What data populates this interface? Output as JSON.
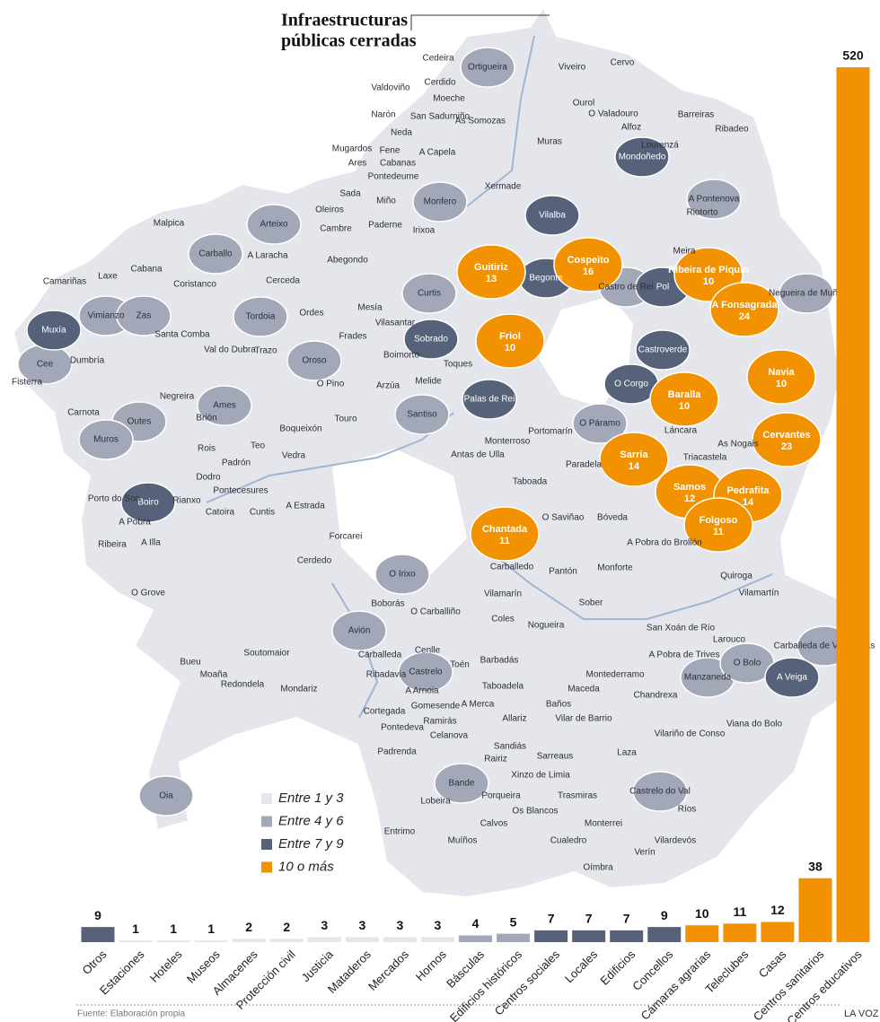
{
  "title_lines": [
    "Infraestructuras",
    "públicas cerradas"
  ],
  "legend": {
    "labels": [
      "Entre 1 y 3",
      "Entre 4 y 6",
      "Entre 7 y 9",
      "10 o más"
    ],
    "colors": [
      "#e4e6ec",
      "#a2a8b7",
      "#56627a",
      "#f39200"
    ]
  },
  "municipalities": [
    {
      "name": "Ortigueira",
      "level": 1
    },
    {
      "name": "Monfero",
      "level": 1
    },
    {
      "name": "Arteixo",
      "level": 1
    },
    {
      "name": "Carballo",
      "level": 1
    },
    {
      "name": "Vimianzo",
      "level": 1
    },
    {
      "name": "Zas",
      "level": 1
    },
    {
      "name": "Tordoia",
      "level": 1
    },
    {
      "name": "Curtis",
      "level": 1
    },
    {
      "name": "Oroso",
      "level": 1
    },
    {
      "name": "Ames",
      "level": 1
    },
    {
      "name": "Outes",
      "level": 1
    },
    {
      "name": "Muros",
      "level": 1
    },
    {
      "name": "Santiso",
      "level": 1
    },
    {
      "name": "Cee",
      "level": 1
    },
    {
      "name": "A Pontenova",
      "level": 1
    },
    {
      "name": "Castro de Rei",
      "level": 1
    },
    {
      "name": "Negueira de Muñiz",
      "level": 1
    },
    {
      "name": "O Páramo",
      "level": 1
    },
    {
      "name": "O Irixo",
      "level": 1
    },
    {
      "name": "Avión",
      "level": 1
    },
    {
      "name": "Castrelo",
      "level": 1
    },
    {
      "name": "Bande",
      "level": 1
    },
    {
      "name": "Castrelo do Val",
      "level": 1
    },
    {
      "name": "Manzaneda",
      "level": 1
    },
    {
      "name": "O Bolo",
      "level": 1
    },
    {
      "name": "Carballeda de Valdeorras",
      "level": 1
    },
    {
      "name": "Oia",
      "level": 1
    },
    {
      "name": "Mondoñedo",
      "level": 2
    },
    {
      "name": "Vilalba",
      "level": 2
    },
    {
      "name": "Begonte",
      "level": 2
    },
    {
      "name": "Pol",
      "level": 2
    },
    {
      "name": "Castroverde",
      "level": 2
    },
    {
      "name": "O Corgo",
      "level": 2
    },
    {
      "name": "Sobrado",
      "level": 2
    },
    {
      "name": "Palas de Rei",
      "level": 2
    },
    {
      "name": "Muxía",
      "level": 2
    },
    {
      "name": "Boiro",
      "level": 2
    },
    {
      "name": "A Veiga",
      "level": 2
    },
    {
      "name": "Cedeira",
      "level": 0
    },
    {
      "name": "Cerdido",
      "level": 0
    },
    {
      "name": "Valdoviño",
      "level": 0
    },
    {
      "name": "Moeche",
      "level": 0
    },
    {
      "name": "San Sadurniño",
      "level": 0
    },
    {
      "name": "As Somozas",
      "level": 0
    },
    {
      "name": "Narón",
      "level": 0
    },
    {
      "name": "Neda",
      "level": 0
    },
    {
      "name": "Mugardos",
      "level": 0
    },
    {
      "name": "Fene",
      "level": 0
    },
    {
      "name": "Ares",
      "level": 0
    },
    {
      "name": "Cabanas",
      "level": 0
    },
    {
      "name": "A Capela",
      "level": 0
    },
    {
      "name": "Pontedeume",
      "level": 0
    },
    {
      "name": "Sada",
      "level": 0
    },
    {
      "name": "Miño",
      "level": 0
    },
    {
      "name": "Oleiros",
      "level": 0
    },
    {
      "name": "Cambre",
      "level": 0
    },
    {
      "name": "Paderne",
      "level": 0
    },
    {
      "name": "Irixoa",
      "level": 0
    },
    {
      "name": "Xermade",
      "level": 0
    },
    {
      "name": "Viveiro",
      "level": 0
    },
    {
      "name": "Cervo",
      "level": 0
    },
    {
      "name": "Ourol",
      "level": 0
    },
    {
      "name": "O Valadouro",
      "level": 0
    },
    {
      "name": "Barreiras",
      "level": 0
    },
    {
      "name": "Ribadeo",
      "level": 0
    },
    {
      "name": "Alfoz",
      "level": 0
    },
    {
      "name": "Muras",
      "level": 0
    },
    {
      "name": "Lourenzá",
      "level": 0
    },
    {
      "name": "Riotorto",
      "level": 0
    },
    {
      "name": "Meira",
      "level": 0
    },
    {
      "name": "Malpica",
      "level": 0
    },
    {
      "name": "A Laracha",
      "level": 0
    },
    {
      "name": "Abegondo",
      "level": 0
    },
    {
      "name": "Cabana",
      "level": 0
    },
    {
      "name": "Laxe",
      "level": 0
    },
    {
      "name": "Camariñas",
      "level": 0
    },
    {
      "name": "Coristanco",
      "level": 0
    },
    {
      "name": "Cerceda",
      "level": 0
    },
    {
      "name": "Mesía",
      "level": 0
    },
    {
      "name": "Ordes",
      "level": 0
    },
    {
      "name": "Santa Comba",
      "level": 0
    },
    {
      "name": "Val do Dubra",
      "level": 0
    },
    {
      "name": "Trazo",
      "level": 0
    },
    {
      "name": "Frades",
      "level": 0
    },
    {
      "name": "Vilasantar",
      "level": 0
    },
    {
      "name": "Boimorto",
      "level": 0
    },
    {
      "name": "Toques",
      "level": 0
    },
    {
      "name": "Dumbría",
      "level": 0
    },
    {
      "name": "Fisterra",
      "level": 0
    },
    {
      "name": "O Pino",
      "level": 0
    },
    {
      "name": "Arzúa",
      "level": 0
    },
    {
      "name": "Melide",
      "level": 0
    },
    {
      "name": "Negreira",
      "level": 0
    },
    {
      "name": "Brión",
      "level": 0
    },
    {
      "name": "Touro",
      "level": 0
    },
    {
      "name": "Carnota",
      "level": 0
    },
    {
      "name": "Boqueixón",
      "level": 0
    },
    {
      "name": "Teo",
      "level": 0
    },
    {
      "name": "Rois",
      "level": 0
    },
    {
      "name": "Vedra",
      "level": 0
    },
    {
      "name": "Padrón",
      "level": 0
    },
    {
      "name": "Dodro",
      "level": 0
    },
    {
      "name": "Pontecesures",
      "level": 0
    },
    {
      "name": "Porto do Son",
      "level": 0
    },
    {
      "name": "Rianxo",
      "level": 0
    },
    {
      "name": "A Pobra",
      "level": 0
    },
    {
      "name": "Catoira",
      "level": 0
    },
    {
      "name": "Cuntis",
      "level": 0
    },
    {
      "name": "A Estrada",
      "level": 0
    },
    {
      "name": "Ribeira",
      "level": 0
    },
    {
      "name": "A Illa",
      "level": 0
    },
    {
      "name": "Forcarei",
      "level": 0
    },
    {
      "name": "Cerdedo",
      "level": 0
    },
    {
      "name": "O Grove",
      "level": 0
    },
    {
      "name": "Monterroso",
      "level": 0
    },
    {
      "name": "Antas de Ulla",
      "level": 0
    },
    {
      "name": "Portomarín",
      "level": 0
    },
    {
      "name": "Láncara",
      "level": 0
    },
    {
      "name": "As Nogais",
      "level": 0
    },
    {
      "name": "Triacastela",
      "level": 0
    },
    {
      "name": "Paradela",
      "level": 0
    },
    {
      "name": "Taboada",
      "level": 0
    },
    {
      "name": "O Saviñao",
      "level": 0
    },
    {
      "name": "Bóveda",
      "level": 0
    },
    {
      "name": "A Pobra do Brollón",
      "level": 0
    },
    {
      "name": "Carballedo",
      "level": 0
    },
    {
      "name": "Pantón",
      "level": 0
    },
    {
      "name": "Monforte",
      "level": 0
    },
    {
      "name": "Quiroga",
      "level": 0
    },
    {
      "name": "Boborás",
      "level": 0
    },
    {
      "name": "O Carballiño",
      "level": 0
    },
    {
      "name": "Vilamarín",
      "level": 0
    },
    {
      "name": "Coles",
      "level": 0
    },
    {
      "name": "Nogueira",
      "level": 0
    },
    {
      "name": "Sober",
      "level": 0
    },
    {
      "name": "Vilamartín",
      "level": 0
    },
    {
      "name": "San Xoán de Río",
      "level": 0
    },
    {
      "name": "A Pobra de Trives",
      "level": 0
    },
    {
      "name": "Larouco",
      "level": 0
    },
    {
      "name": "Soutomaior",
      "level": 0
    },
    {
      "name": "Carballeda",
      "level": 0
    },
    {
      "name": "Cenlle",
      "level": 0
    },
    {
      "name": "Toén",
      "level": 0
    },
    {
      "name": "Barbadás",
      "level": 0
    },
    {
      "name": "Ribadavia",
      "level": 0
    },
    {
      "name": "Bueu",
      "level": 0
    },
    {
      "name": "Moaña",
      "level": 0
    },
    {
      "name": "Redondela",
      "level": 0
    },
    {
      "name": "Mondariz",
      "level": 0
    },
    {
      "name": "A Arnoia",
      "level": 0
    },
    {
      "name": "Taboadela",
      "level": 0
    },
    {
      "name": "Montederramo",
      "level": 0
    },
    {
      "name": "Maceda",
      "level": 0
    },
    {
      "name": "Chandrexa",
      "level": 0
    },
    {
      "name": "Cortegada",
      "level": 0
    },
    {
      "name": "Gomesende",
      "level": 0
    },
    {
      "name": "A Merca",
      "level": 0
    },
    {
      "name": "Baños",
      "level": 0
    },
    {
      "name": "Pontedeva",
      "level": 0
    },
    {
      "name": "Ramirás",
      "level": 0
    },
    {
      "name": "Allariz",
      "level": 0
    },
    {
      "name": "Vilar de Barrio",
      "level": 0
    },
    {
      "name": "Viana do Bolo",
      "level": 0
    },
    {
      "name": "Vilariño de Conso",
      "level": 0
    },
    {
      "name": "Padrenda",
      "level": 0
    },
    {
      "name": "Celanova",
      "level": 0
    },
    {
      "name": "Sandiás",
      "level": 0
    },
    {
      "name": "Sarreaus",
      "level": 0
    },
    {
      "name": "Laza",
      "level": 0
    },
    {
      "name": "Rairiz",
      "level": 0
    },
    {
      "name": "Xinzo de Limia",
      "level": 0
    },
    {
      "name": "Porqueira",
      "level": 0
    },
    {
      "name": "Trasmiras",
      "level": 0
    },
    {
      "name": "Lobeira",
      "level": 0
    },
    {
      "name": "Os Blancos",
      "level": 0
    },
    {
      "name": "Ríos",
      "level": 0
    },
    {
      "name": "Calvos",
      "level": 0
    },
    {
      "name": "Entrimo",
      "level": 0
    },
    {
      "name": "Monterrei",
      "level": 0
    },
    {
      "name": "Muíños",
      "level": 0
    },
    {
      "name": "Cualedro",
      "level": 0
    },
    {
      "name": "Vilardevós",
      "level": 0
    },
    {
      "name": "Verín",
      "level": 0
    },
    {
      "name": "Oímbra",
      "level": 0
    }
  ],
  "highlighted": [
    {
      "name": "Guitiriz",
      "value": 13
    },
    {
      "name": "Cospeito",
      "value": 16
    },
    {
      "name": "Friol",
      "value": 10
    },
    {
      "name": "Ribeira de Piquín",
      "value": 10
    },
    {
      "name": "A Fonsagrada",
      "value": 24
    },
    {
      "name": "Navia",
      "value": 10
    },
    {
      "name": "Baralla",
      "value": 10
    },
    {
      "name": "Cervantes",
      "value": 23
    },
    {
      "name": "Sarria",
      "value": 14
    },
    {
      "name": "Samos",
      "value": 12
    },
    {
      "name": "Pedrafita",
      "value": 14
    },
    {
      "name": "Folgoso",
      "value": 11
    },
    {
      "name": "Chantada",
      "value": 11
    }
  ],
  "chart_data": {
    "type": "bar",
    "categories": [
      "Otros",
      "Estaciones",
      "Hoteles",
      "Museos",
      "Almacenes",
      "Protección civil",
      "Justicia",
      "Mataderos",
      "Mercados",
      "Hornos",
      "Básculas",
      "Edificios históricos",
      "Centros sociales",
      "Locales",
      "Edificios",
      "Concellos",
      "Cámaras agrarias",
      "Teleclubes",
      "Casas",
      "Centros sanitarios",
      "Centros educativos"
    ],
    "values": [
      9,
      1,
      1,
      1,
      2,
      2,
      3,
      3,
      3,
      3,
      4,
      5,
      7,
      7,
      7,
      9,
      10,
      11,
      12,
      38,
      520
    ],
    "colors": [
      "#56627a",
      "#e4e6ec",
      "#e4e6ec",
      "#e4e6ec",
      "#e4e6ec",
      "#e4e6ec",
      "#e4e6ec",
      "#e4e6ec",
      "#e4e6ec",
      "#e4e6ec",
      "#a2a8b7",
      "#a2a8b7",
      "#56627a",
      "#56627a",
      "#56627a",
      "#56627a",
      "#f39200",
      "#f39200",
      "#f39200",
      "#f39200",
      "#f39200"
    ]
  },
  "source": "Fuente: Elaboración propia",
  "brand": "LA VOZ"
}
